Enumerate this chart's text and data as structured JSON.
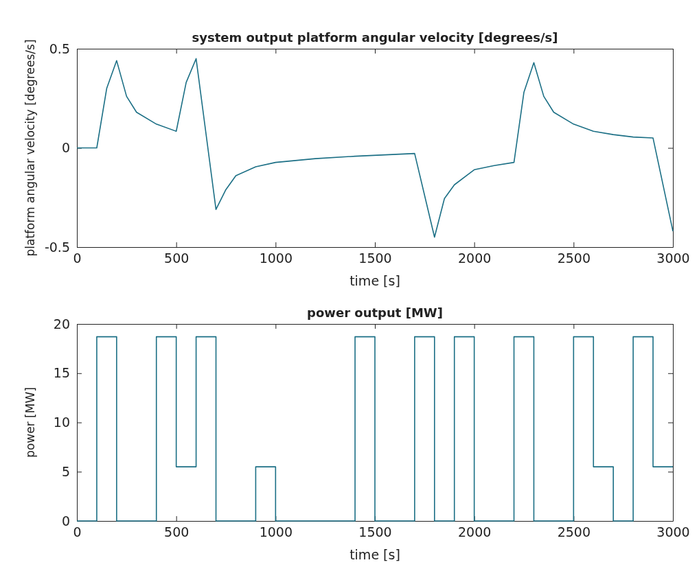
{
  "chart_data": [
    {
      "type": "line",
      "title": "system output platform angular velocity [degrees/s]",
      "xlabel": "time [s]",
      "ylabel": "platform angular velocity [degrees/s]",
      "x": [
        0,
        100,
        150,
        200,
        250,
        300,
        400,
        500,
        550,
        600,
        700,
        750,
        800,
        900,
        1000,
        1200,
        1400,
        1700,
        1800,
        1850,
        1900,
        2000,
        2100,
        2200,
        2250,
        2300,
        2350,
        2400,
        2500,
        2600,
        2700,
        2800,
        2900,
        3000
      ],
      "values": [
        0,
        0,
        0.3,
        0.44,
        0.26,
        0.18,
        0.12,
        0.084,
        0.33,
        0.45,
        -0.31,
        -0.21,
        -0.14,
        -0.095,
        -0.073,
        -0.054,
        -0.042,
        -0.028,
        -0.45,
        -0.255,
        -0.186,
        -0.11,
        -0.089,
        -0.073,
        0.28,
        0.43,
        0.26,
        0.18,
        0.12,
        0.084,
        0.067,
        0.055,
        0.05,
        -0.42
      ],
      "color": "#1b6f85",
      "xlim": [
        0,
        3000
      ],
      "xticks": [
        0,
        500,
        1000,
        1500,
        2000,
        2500,
        3000
      ],
      "ylim": [
        -0.5,
        0.5
      ],
      "yticks": [
        -0.5,
        0,
        0.5
      ],
      "grid": false
    },
    {
      "type": "step",
      "title": "power output [MW]",
      "xlabel": "time [s]",
      "ylabel": "power [MW]",
      "x": [
        0,
        100,
        200,
        400,
        500,
        600,
        700,
        900,
        1000,
        1400,
        1500,
        1700,
        1800,
        1900,
        2000,
        2200,
        2300,
        2500,
        2600,
        2700,
        2800,
        2900,
        3000
      ],
      "values": [
        0,
        18.7,
        0,
        18.7,
        5.5,
        18.7,
        0,
        5.5,
        0,
        18.7,
        0,
        18.7,
        0,
        18.7,
        0,
        18.7,
        0,
        18.7,
        5.5,
        0,
        18.7,
        5.5,
        5.5
      ],
      "color": "#1b6f85",
      "xlim": [
        0,
        3000
      ],
      "xticks": [
        0,
        500,
        1000,
        1500,
        2000,
        2500,
        3000
      ],
      "ylim": [
        0,
        20
      ],
      "yticks": [
        0,
        5,
        10,
        15,
        20
      ],
      "grid": false
    }
  ]
}
